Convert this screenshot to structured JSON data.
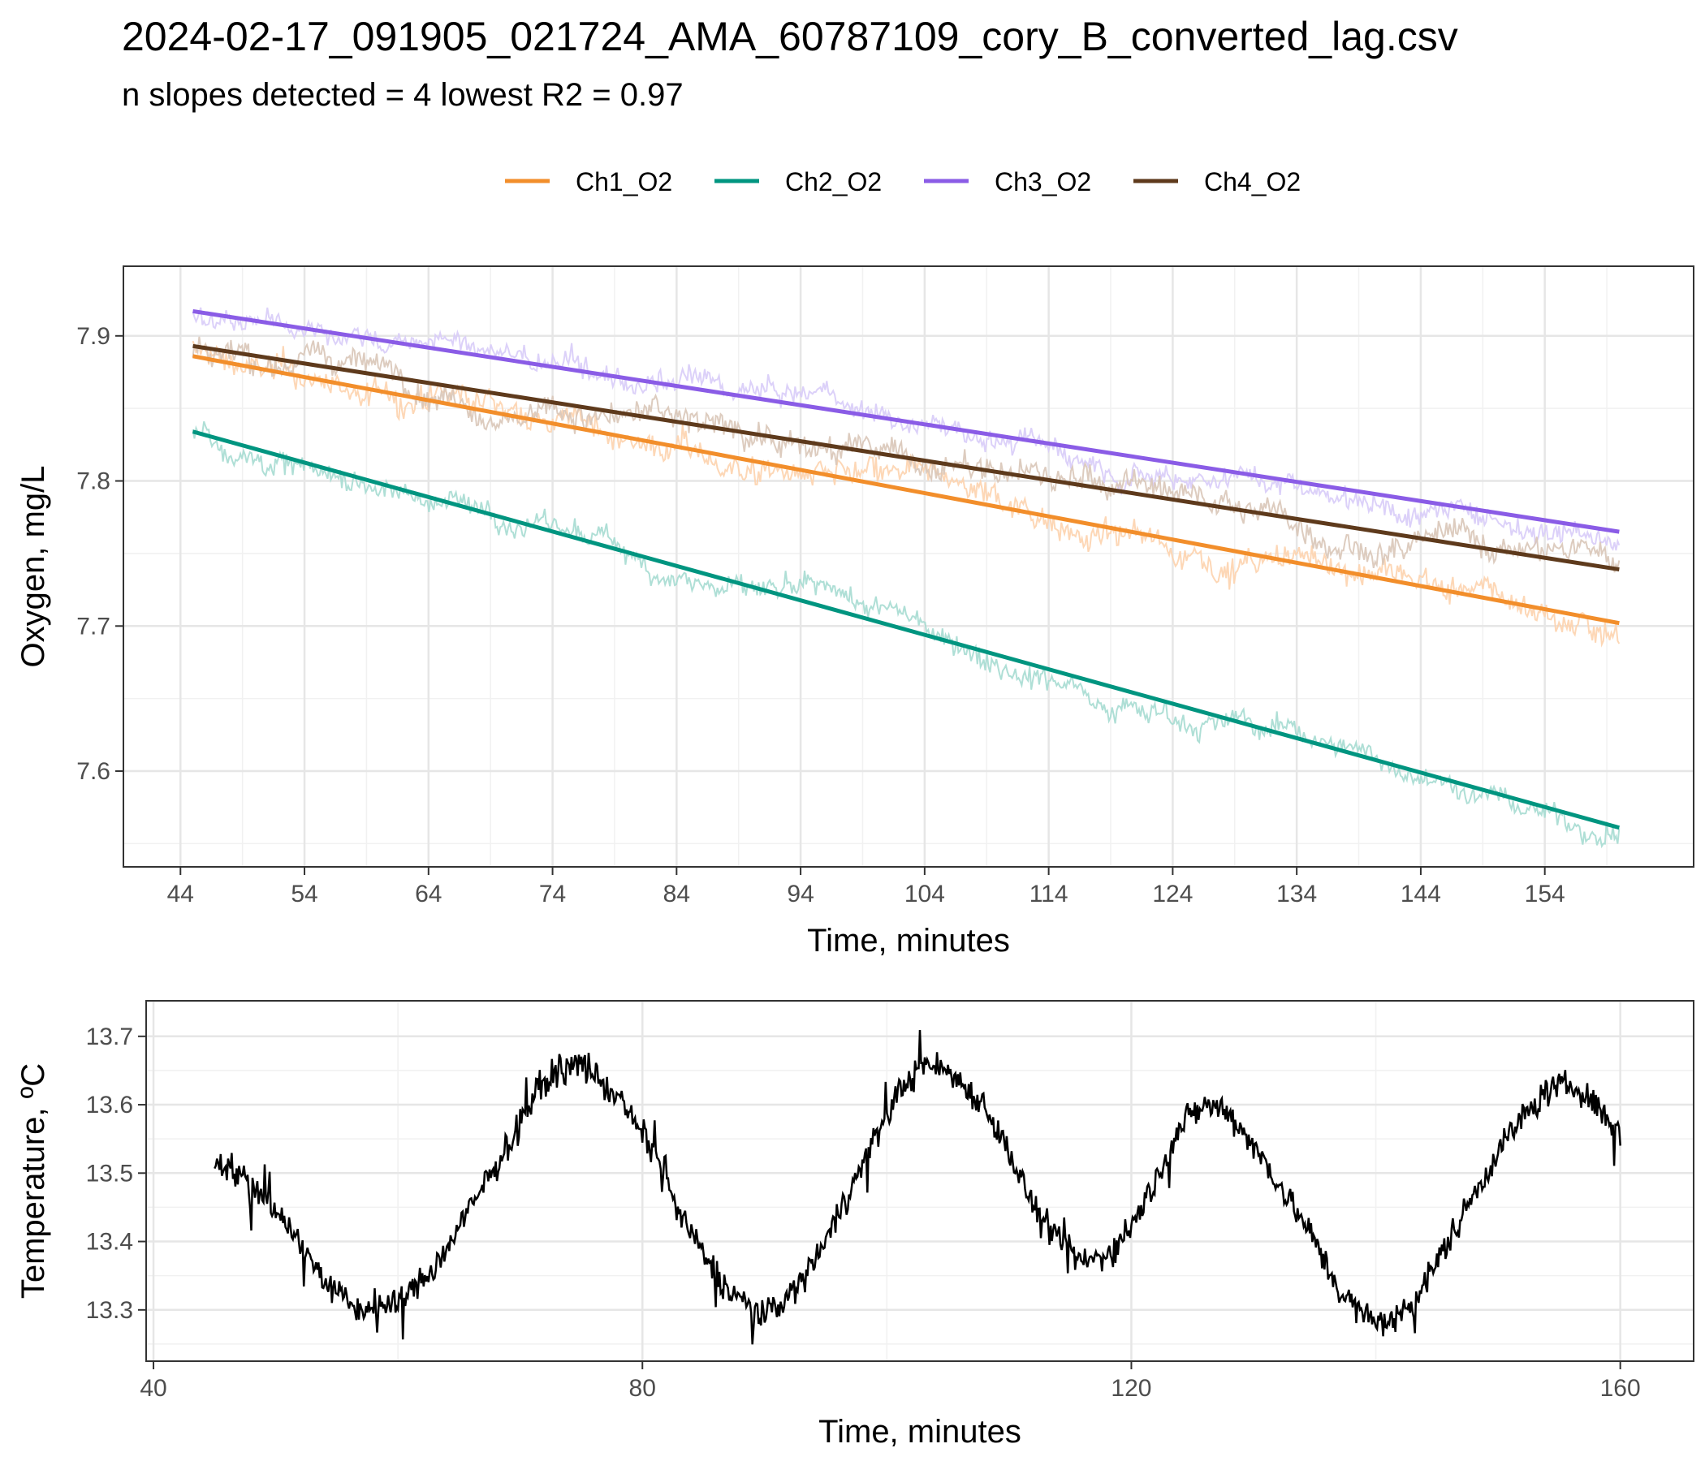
{
  "title": "2024-02-17_091905_021724_AMA_60787109_cory_B_converted_lag.csv",
  "subtitle": "n slopes detected = 4  lowest R2 = 0.97",
  "chart_data": [
    {
      "type": "line",
      "panel": "oxygen",
      "xlabel": "Time, minutes",
      "ylabel": "Oxygen, mg/L",
      "xlim": [
        39.4,
        166
      ],
      "ylim": [
        7.534,
        7.948
      ],
      "x_major_ticks": [
        44,
        54,
        64,
        74,
        84,
        94,
        104,
        114,
        124,
        134,
        144,
        154
      ],
      "x_tick_labels": [
        "44",
        "54",
        "64",
        "74",
        "84",
        "94",
        "104",
        "114",
        "124",
        "134",
        "144",
        "154"
      ],
      "y_major_ticks": [
        7.6,
        7.7,
        7.8,
        7.9
      ],
      "y_tick_labels": [
        "7.6",
        "7.7",
        "7.8",
        "7.9"
      ],
      "grid": true,
      "legend_position": "top",
      "x_range": [
        45,
        160
      ],
      "series": [
        {
          "name": "Ch1_O2",
          "color": "#F28E2B",
          "raw_color": "#FDD3AE",
          "fit_start": 7.886,
          "fit_end": 7.702,
          "noise": 0.012
        },
        {
          "name": "Ch2_O2",
          "color": "#009580",
          "raw_color": "#A6DCD1",
          "fit_start": 7.834,
          "fit_end": 7.561,
          "noise": 0.01
        },
        {
          "name": "Ch3_O2",
          "color": "#8A5CE6",
          "raw_color": "#D8CCF8",
          "fit_start": 7.917,
          "fit_end": 7.765,
          "noise": 0.01
        },
        {
          "name": "Ch4_O2",
          "color": "#5E3A1C",
          "raw_color": "#D9C7B8",
          "fit_start": 7.893,
          "fit_end": 7.739,
          "noise": 0.012
        }
      ]
    },
    {
      "type": "line",
      "panel": "temperature",
      "xlabel": "Time, minutes",
      "ylabel": "Temperature, ºC",
      "xlim": [
        39.4,
        166
      ],
      "ylim": [
        13.225,
        13.752
      ],
      "x_major_ticks": [
        40,
        80,
        120,
        160
      ],
      "x_tick_labels": [
        "40",
        "80",
        "120",
        "160"
      ],
      "y_major_ticks": [
        13.3,
        13.4,
        13.5,
        13.6,
        13.7
      ],
      "y_tick_labels": [
        "13.3",
        "13.4",
        "13.5",
        "13.6",
        "13.7"
      ],
      "grid": true,
      "series": [
        {
          "name": "",
          "color": "#000000",
          "x": [
            45,
            47,
            50,
            53,
            55,
            57,
            60,
            63,
            66,
            69,
            71,
            73,
            75,
            78,
            81,
            83,
            85,
            87,
            90,
            93,
            96,
            99,
            101,
            103,
            105,
            108,
            110,
            112,
            114,
            116,
            118,
            120,
            122,
            124,
            126,
            128,
            130,
            133,
            135,
            137,
            139,
            141,
            143,
            145,
            148,
            151,
            154,
            156,
            158,
            160
          ],
          "y": [
            13.52,
            13.5,
            13.45,
            13.37,
            13.32,
            13.3,
            13.31,
            13.36,
            13.45,
            13.54,
            13.61,
            13.65,
            13.66,
            13.61,
            13.53,
            13.44,
            13.38,
            13.33,
            13.29,
            13.34,
            13.44,
            13.55,
            13.62,
            13.66,
            13.65,
            13.6,
            13.53,
            13.45,
            13.4,
            13.37,
            13.38,
            13.42,
            13.49,
            13.57,
            13.6,
            13.59,
            13.54,
            13.46,
            13.4,
            13.33,
            13.29,
            13.28,
            13.31,
            13.37,
            13.47,
            13.56,
            13.62,
            13.63,
            13.6,
            13.56
          ],
          "noise": 0.018
        }
      ]
    }
  ]
}
